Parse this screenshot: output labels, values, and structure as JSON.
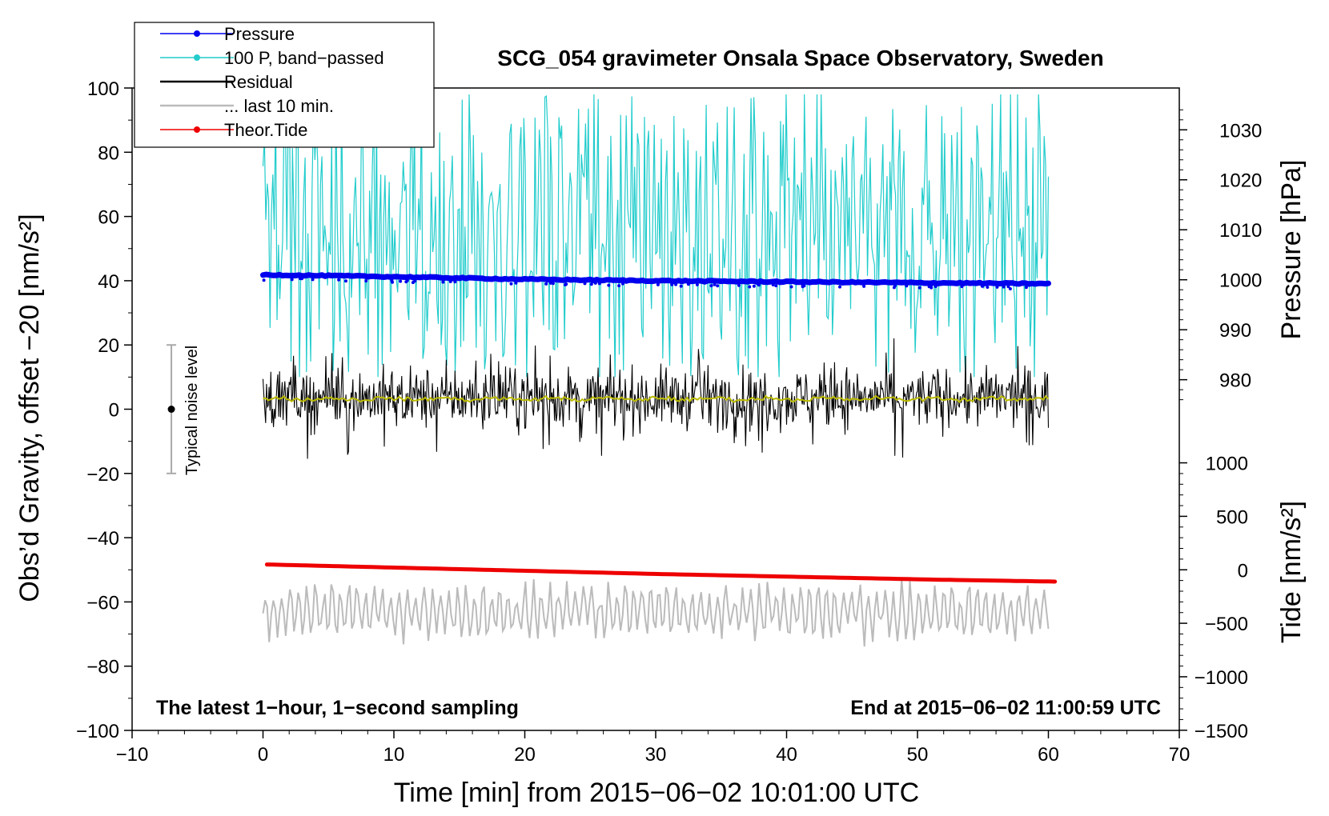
{
  "chart_data": {
    "type": "line",
    "title": "SCG_054 gravimeter Onsala Space Observatory, Sweden",
    "xlabel": "Time [min] from 2015−06−02 10:01:00 UTC",
    "ylabel_left": "Obs’d Gravity, offset −20 [nm/s²]",
    "ylabel_right_pressure": "Pressure [hPa]",
    "ylabel_right_tide": "Tide [nm/s²]",
    "xlim": [
      -10,
      70
    ],
    "ylim_left": [
      -100,
      100
    ],
    "x_ticks": [
      -10,
      0,
      10,
      20,
      30,
      40,
      50,
      60,
      70
    ],
    "x_tick_labels": [
      "−10",
      "0",
      "10",
      "20",
      "30",
      "40",
      "50",
      "60",
      "70"
    ],
    "y_ticks_left": [
      100,
      80,
      60,
      40,
      20,
      0,
      -20,
      -40,
      -60,
      -80,
      -100
    ],
    "y_tick_labels_left": [
      "100",
      "80",
      "60",
      "40",
      "20",
      "0",
      "−20",
      "−40",
      "−60",
      "−80",
      "−100"
    ],
    "pressure_axis": {
      "ticks": [
        1030,
        1020,
        1010,
        1000,
        990,
        980
      ],
      "tick_labels": [
        "1030",
        "1020",
        "1010",
        "1000",
        "990",
        "980"
      ],
      "left_equiv_per_hPa": 1.556,
      "left_at_1000": 40.3
    },
    "tide_axis": {
      "ticks": [
        1000,
        500,
        0,
        -500,
        -1000,
        -1500
      ],
      "tick_labels": [
        "1000",
        "500",
        "0",
        "−500",
        "−1000",
        "−1500"
      ],
      "left_equiv_per_unit": 0.0333,
      "left_at_0": -50
    },
    "legend": [
      {
        "label": "Pressure",
        "color": "#0000ee",
        "marker": true
      },
      {
        "label": "100 P, band−passed",
        "color": "#22cccc",
        "marker": true
      },
      {
        "label": "Residual",
        "color": "#000000",
        "marker": false
      },
      {
        "label": "... last 10 min.",
        "color": "#bbbbbb",
        "marker": false
      },
      {
        "label": "Theor.Tide",
        "color": "#ee0000",
        "marker": true
      }
    ],
    "series": [
      {
        "name": "Pressure",
        "axis": "pressure",
        "color": "#0000ee",
        "x_range": [
          0,
          60
        ],
        "values_hPa": [
          1001.0,
          1000.6,
          1000.1,
          999.8,
          999.6,
          999.4,
          999.2
        ]
      },
      {
        "name": "100 P, band−passed",
        "axis": "left",
        "color": "#22cccc",
        "x_range": [
          0,
          60
        ],
        "center": 55,
        "spread": 45,
        "min": 10,
        "max": 98
      },
      {
        "name": "Residual",
        "axis": "left",
        "color": "#000000",
        "x_range": [
          0,
          60
        ],
        "center": 3.5,
        "spread": 11,
        "min": -18,
        "max": 24
      },
      {
        "name": "Residual (smoothed)",
        "axis": "left",
        "color": "#bbbb00",
        "x_range": [
          0,
          60
        ],
        "center": 3.2,
        "spread": 0.8
      },
      {
        "name": "... last 10 min.",
        "axis": "left",
        "color": "#bbbbbb",
        "x_range": [
          0,
          60
        ],
        "center": -63,
        "spread": 7,
        "min": -82,
        "max": -46
      },
      {
        "name": "Theor.Tide",
        "axis": "tide",
        "color": "#ee0000",
        "x_range": [
          0.3,
          60.5
        ],
        "values_nm_s2": [
          50,
          20,
          -10,
          -40,
          -65,
          -90,
          -110
        ]
      }
    ],
    "noise_bar": {
      "label": "Typical noise level",
      "x": -7,
      "y_center": 0,
      "y_low": -20,
      "y_high": 20
    },
    "annotations": {
      "bottom_left": "The latest 1−hour, 1−second sampling",
      "bottom_right": "End at 2015−06−02 11:00:59 UTC"
    }
  }
}
